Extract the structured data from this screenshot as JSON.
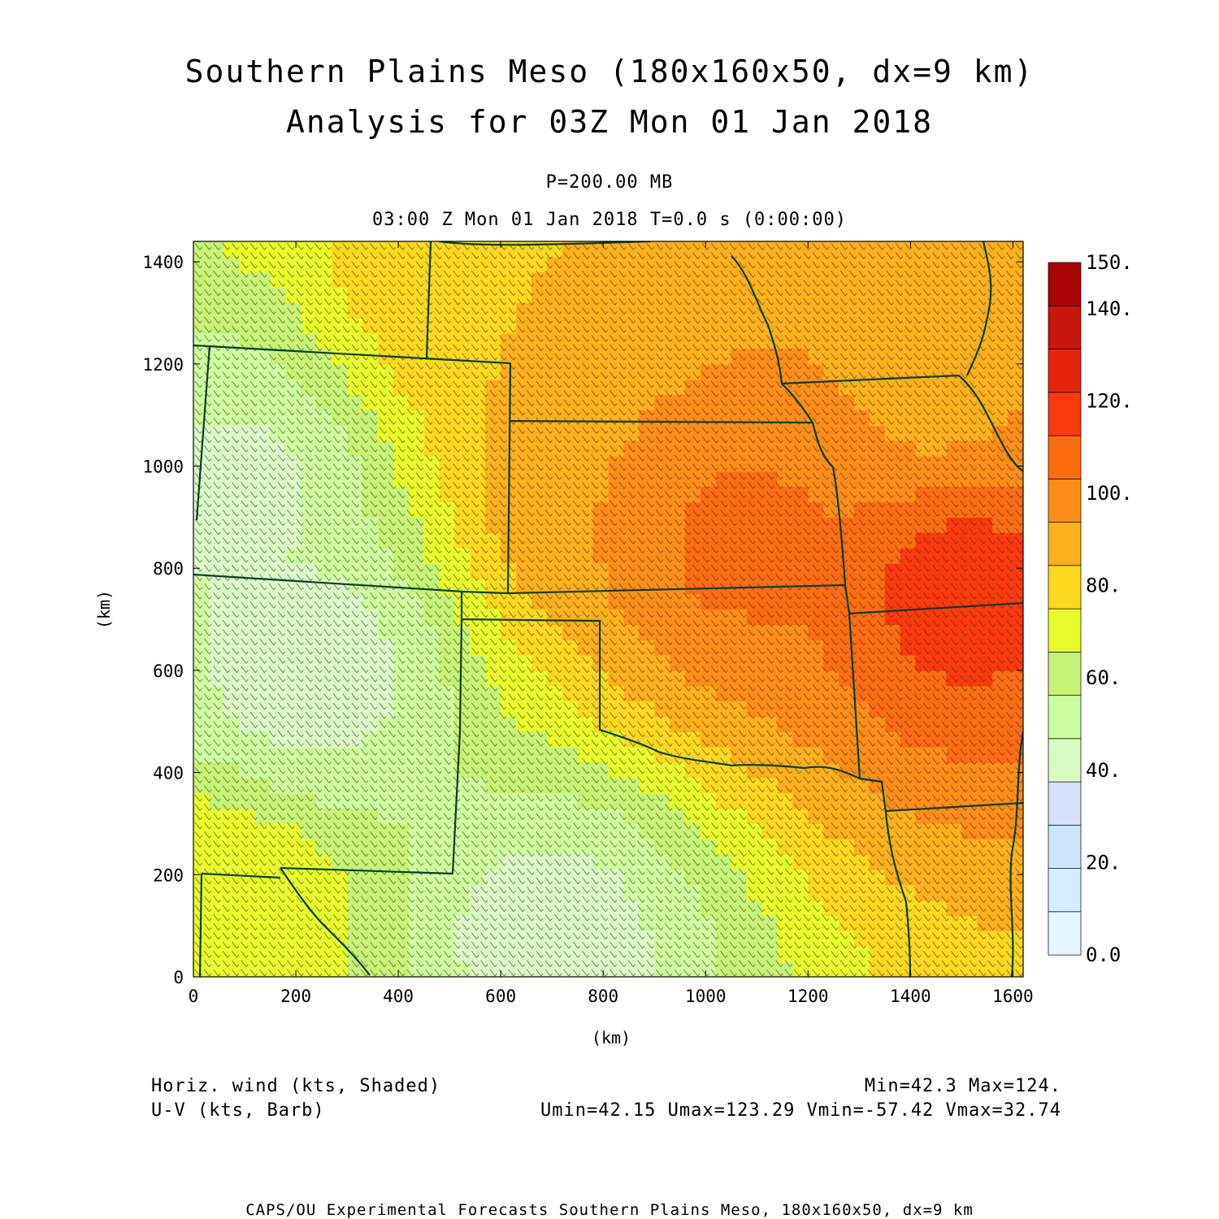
{
  "title": {
    "line1": "Southern Plains Meso (180x160x50, dx=9 km)",
    "line2": "Analysis for 03Z Mon 01 Jan 2018"
  },
  "subtitle": {
    "level": "P=200.00 MB",
    "time": "03:00 Z Mon 01 Jan 2018   T=0.0 s (0:00:00)"
  },
  "axes": {
    "xlabel": "(km)",
    "ylabel": "(km)",
    "xticks": [
      0,
      200,
      400,
      600,
      800,
      1000,
      1200,
      1400,
      1600
    ],
    "yticks": [
      0,
      200,
      400,
      600,
      800,
      1000,
      1200,
      1400
    ],
    "xlim": [
      0,
      1620
    ],
    "ylim": [
      0,
      1440
    ]
  },
  "colorbar": {
    "labels": [
      "0.0",
      "20.",
      "40.",
      "60.",
      "80.",
      "100.",
      "120.",
      "140.",
      "150."
    ],
    "levels": [
      0,
      10,
      20,
      30,
      40,
      50,
      60,
      70,
      80,
      90,
      100,
      110,
      120,
      130,
      140,
      150
    ],
    "colors": [
      "#e6f6ff",
      "#d4eeff",
      "#cfe4fb",
      "#d6e0fa",
      "#d9fac5",
      "#ccfd9e",
      "#c6f275",
      "#e7fb2c",
      "#fcd81e",
      "#fcb01c",
      "#fc8e18",
      "#fc6d12",
      "#fc3a0d",
      "#e6240b",
      "#c8180b",
      "#aa0505"
    ]
  },
  "notes": {
    "left1": "Horiz. wind (kts, Shaded)",
    "left2": "U-V (kts, Barb)",
    "right1": "Min=42.3 Max=124.",
    "right2": "Umin=42.15 Umax=123.29 Vmin=-57.42 Vmax=32.74"
  },
  "footer": "CAPS/OU Experimental Forecasts  Southern Plains Meso, 180x160x50, dx=9 km",
  "map_data": {
    "field": "wind speed (kts)",
    "jet_max_location_km": [
      1500,
      720
    ],
    "centers": [
      {
        "x": 1500,
        "y": 760,
        "value": 124
      },
      {
        "x": 1050,
        "y": 860,
        "value": 113
      },
      {
        "x": 800,
        "y": 960,
        "value": 100
      },
      {
        "x": 1450,
        "y": 1150,
        "value": 98
      },
      {
        "x": 600,
        "y": 1350,
        "value": 90
      },
      {
        "x": 80,
        "y": 950,
        "value": 48
      },
      {
        "x": 230,
        "y": 600,
        "value": 45
      },
      {
        "x": 700,
        "y": 80,
        "value": 46
      },
      {
        "x": 50,
        "y": 120,
        "value": 80
      }
    ],
    "background_value": 72
  }
}
